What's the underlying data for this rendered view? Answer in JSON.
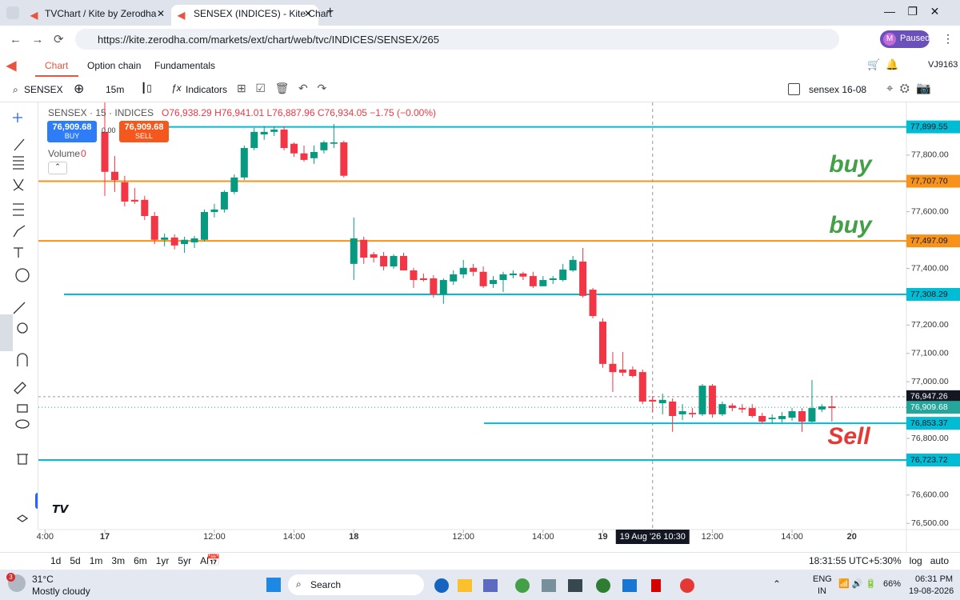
{
  "browser": {
    "tabs": [
      "TVChart / Kite by Zerodha",
      "SENSEX (INDICES) - Kite Chart"
    ],
    "url": "https://kite.zerodha.com/markets/ext/chart/web/tvc/INDICES/SENSEX/265",
    "profile": "M",
    "status": "Paused"
  },
  "nav": {
    "items": [
      "Chart",
      "Option chain",
      "Fundamentals"
    ],
    "user": "VJ9163"
  },
  "toolbar": {
    "symbol": "SENSEX",
    "interval": "15m",
    "indicators": "Indicators",
    "layout": "sensex 16-08"
  },
  "legend": {
    "symbol": "SENSEX · 15 · INDICES",
    "open": "O76,938.29",
    "high": "H76,941.01",
    "low": "L76,887.96",
    "close": "C76,934.05",
    "change": "−1.75 (−0.00%)",
    "volume_label": "Volume",
    "volume": 0
  },
  "order": {
    "buy_price": "76,909.68",
    "buy": "BUY",
    "spread": "0.00",
    "sell_price": "76,909.68",
    "sell": "SELL"
  },
  "chart_data": {
    "type": "candlestick",
    "colors": {
      "up": "#089981",
      "down": "#f23645"
    },
    "open": [
      77882,
      77741,
      77704,
      77642,
      77642,
      77585,
      77501,
      77509,
      77486,
      77492,
      77501,
      77599,
      77608,
      77670,
      77721,
      77825,
      77873,
      77882,
      77890,
      77840,
      77806,
      77789,
      77817,
      77840,
      77845,
      77416,
      77501,
      77450,
      77444,
      77407,
      77444,
      77393,
      77365,
      77365,
      77308,
      77354,
      77379,
      77402,
      77388,
      77345,
      77359,
      77376,
      77382,
      77373,
      77337,
      77359,
      77359,
      77393,
      77424,
      77325,
      77212,
      77063,
      77043,
      77043,
      77034,
      76936,
      76924,
      76930,
      76885,
      76890,
      76885,
      76986,
      76885,
      76916,
      76907,
      76907,
      76879,
      76868,
      76868,
      76873,
      76896,
      76859,
      76902,
      76913
    ],
    "high": [
      77986,
      77797,
      77727,
      77684,
      77656,
      77599,
      77523,
      77520,
      77512,
      77515,
      77608,
      77628,
      77676,
      77732,
      77834,
      77896,
      77902,
      77902,
      77902,
      77845,
      77834,
      77834,
      77851,
      77910,
      77851,
      77580,
      77512,
      77458,
      77458,
      77450,
      77455,
      77402,
      77382,
      77376,
      77365,
      77393,
      77430,
      77416,
      77407,
      77373,
      77388,
      77393,
      77388,
      77388,
      77373,
      77373,
      77416,
      77444,
      77472,
      77331,
      77224,
      77105,
      77105,
      77054,
      77043,
      76950,
      76958,
      76941,
      76921,
      76907,
      76992,
      76992,
      76930,
      76924,
      76921,
      76921,
      76890,
      76885,
      76893,
      76907,
      76907,
      77006,
      76921,
      76950
    ],
    "low": [
      77656,
      77670,
      77619,
      77628,
      77571,
      77486,
      77478,
      77467,
      77455,
      77472,
      77495,
      77580,
      77597,
      77662,
      77712,
      77817,
      77854,
      77868,
      77817,
      77794,
      77777,
      77769,
      77806,
      77825,
      77721,
      77359,
      77416,
      77421,
      77393,
      77399,
      77393,
      77331,
      77354,
      77297,
      77275,
      77342,
      77365,
      77373,
      77331,
      77331,
      77317,
      77365,
      77359,
      77331,
      77337,
      77345,
      77354,
      77388,
      77297,
      77224,
      77049,
      76964,
      77020,
      77015,
      76921,
      76893,
      76885,
      76823,
      76865,
      76873,
      76879,
      76873,
      76879,
      76896,
      76890,
      76873,
      76851,
      76851,
      76856,
      76862,
      76823,
      76856,
      76893,
      76859
    ],
    "close": [
      77741,
      77712,
      77636,
      77636,
      77585,
      77501,
      77509,
      77481,
      77501,
      77506,
      77599,
      77608,
      77670,
      77721,
      77825,
      77882,
      77882,
      77890,
      77825,
      77806,
      77783,
      77811,
      77845,
      77845,
      77727,
      77506,
      77438,
      77438,
      77407,
      77444,
      77393,
      77359,
      77359,
      77308,
      77359,
      77379,
      77402,
      77388,
      77337,
      77359,
      77379,
      77382,
      77371,
      77337,
      77359,
      77365,
      77396,
      77430,
      77303,
      77232,
      77063,
      77034,
      77032,
      77020,
      76930,
      76930,
      76936,
      76879,
      76896,
      76885,
      76986,
      76885,
      76921,
      76907,
      76902,
      76879,
      76859,
      76873,
      76879,
      76896,
      76859,
      76907,
      76913,
      76907
    ],
    "xticks": [
      {
        "value": -6,
        "label": "4:00"
      },
      {
        "value": 0,
        "label": "17"
      },
      {
        "value": 11,
        "label": "12:00"
      },
      {
        "value": 19,
        "label": "14:00"
      },
      {
        "value": 25,
        "label": "18"
      },
      {
        "value": 36,
        "label": "12:00"
      },
      {
        "value": 44,
        "label": "14:00"
      },
      {
        "value": 50,
        "label": "19"
      },
      {
        "value": 61,
        "label": "12:00"
      },
      {
        "value": 69,
        "label": "14:00"
      },
      {
        "value": 75,
        "label": "20"
      }
    ],
    "crosshair": {
      "value": 55,
      "label": "19 Aug '26  10:30"
    },
    "ylim": [
      76478,
      77986
    ],
    "yticks": [
      {
        "value": 77800,
        "label": "77,800.00"
      },
      {
        "value": 77600,
        "label": "77,600.00"
      },
      {
        "value": 77400,
        "label": "77,400.00"
      },
      {
        "value": 77200,
        "label": "77,200.00"
      },
      {
        "value": 77100,
        "label": "77,100.00"
      },
      {
        "value": 77000,
        "label": "77,000.00"
      },
      {
        "value": 76800,
        "label": "76,800.00"
      },
      {
        "value": 76600,
        "label": "76,600.00"
      },
      {
        "value": 76500,
        "label": "76,500.00"
      }
    ],
    "levels": [
      {
        "value": 77899.55,
        "label": "77,899.55",
        "color": "#00bcd4"
      },
      {
        "value": 77707.7,
        "label": "77,707.70",
        "color": "#f7931a"
      },
      {
        "value": 77497.09,
        "label": "77,497.09",
        "color": "#f7931a"
      },
      {
        "value": 77308.29,
        "label": "77,308.29",
        "color": "#00bcd4"
      },
      {
        "value": 76853.37,
        "label": "76,853.37",
        "color": "#00bcd4"
      },
      {
        "value": 76723.72,
        "label": "76,723.72",
        "color": "#00bcd4"
      }
    ],
    "last": {
      "value": 76947.26,
      "label": "76,947.26"
    },
    "bid": {
      "value": 76909.68,
      "label": "76,909.68"
    },
    "annotations": [
      {
        "text": "buy",
        "color": "#43a047"
      },
      {
        "text": "buy",
        "color": "#43a047"
      },
      {
        "text": "Sell",
        "color": "#e53935"
      }
    ]
  },
  "bottom": {
    "ranges": [
      "1d",
      "5d",
      "1m",
      "3m",
      "6m",
      "1yr",
      "5yr",
      "All"
    ],
    "time": "18:31:55 UTC+5:30",
    "options": [
      "%",
      "log",
      "auto"
    ]
  },
  "taskbar": {
    "badge": "3",
    "temp": "31°C",
    "weather": "Mostly cloudy",
    "search": "Search",
    "lang": "ENG",
    "region": "IN",
    "battery": "66%",
    "time": "06:31 PM",
    "date": "19-08-2026"
  }
}
